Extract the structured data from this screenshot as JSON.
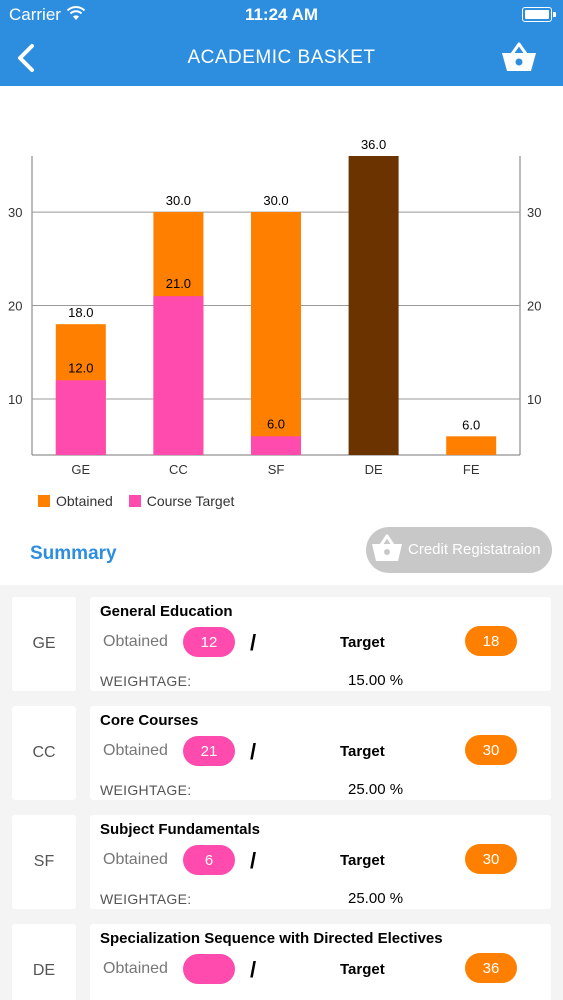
{
  "status_bar": {
    "carrier": "Carrier",
    "time": "11:24 AM"
  },
  "nav": {
    "title": "ACADEMIC BASKET",
    "back_icon": "chevron-left-icon",
    "basket_icon": "basket-icon"
  },
  "chart_data": {
    "type": "bar",
    "categories": [
      "GE",
      "CC",
      "SF",
      "DE",
      "FE"
    ],
    "series": [
      {
        "name": "Obtained",
        "color": "#ff8000",
        "values": [
          18.0,
          30.0,
          30.0,
          36.0,
          6.0
        ]
      },
      {
        "name": "Course Target",
        "color": "#ff4aae",
        "values": [
          12.0,
          21.0,
          6.0,
          null,
          null
        ]
      }
    ],
    "bar_colors_override": {
      "DE": "#6b3300"
    },
    "value_labels_top": [
      "18.0",
      "30.0",
      "30.0",
      "36.0",
      "6.0"
    ],
    "value_labels_inner": [
      "12.0",
      "21.0",
      "6.0",
      "",
      ""
    ],
    "y_ticks": [
      10,
      20,
      30
    ],
    "ylim": [
      4,
      36
    ],
    "grid": true,
    "legend": "bottom-left"
  },
  "legend": {
    "obtained": "Obtained",
    "course_target": "Course Target"
  },
  "summary": {
    "title": "Summary",
    "credit_button": "Credit Registatraion"
  },
  "cards": [
    {
      "code": "GE",
      "name": "General Education",
      "obtained_label": "Obtained",
      "obtained": "12",
      "slash": "/",
      "target_label": "Target",
      "target": "18",
      "weightage_label": "WEIGHTAGE:",
      "weightage": "15.00 %"
    },
    {
      "code": "CC",
      "name": "Core Courses",
      "obtained_label": "Obtained",
      "obtained": "21",
      "slash": "/",
      "target_label": "Target",
      "target": "30",
      "weightage_label": "WEIGHTAGE:",
      "weightage": "25.00 %"
    },
    {
      "code": "SF",
      "name": "Subject Fundamentals",
      "obtained_label": "Obtained",
      "obtained": "6",
      "slash": "/",
      "target_label": "Target",
      "target": "30",
      "weightage_label": "WEIGHTAGE:",
      "weightage": "25.00 %"
    },
    {
      "code": "DE",
      "name": "Specialization Sequence  with Directed Electives",
      "obtained_label": "Obtained",
      "obtained": "",
      "slash": "/",
      "target_label": "Target",
      "target": "36",
      "weightage_label": "",
      "weightage": ""
    }
  ],
  "colors": {
    "brand": "#2d8ee0",
    "obtained": "#ff8000",
    "target": "#ff4aae",
    "de_bar": "#6b3300"
  }
}
